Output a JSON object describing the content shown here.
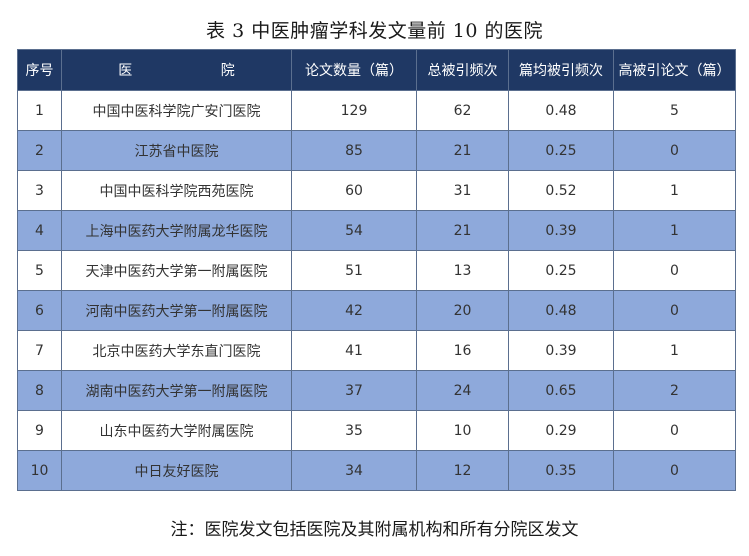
{
  "title": "表 3 中医肿瘤学科发文量前 10 的医院",
  "table": {
    "columns": [
      "序号",
      "医 院",
      "论文数量（篇）",
      "总被引频次",
      "篇均被引频次",
      "高被引论文（篇）"
    ],
    "rows": [
      [
        "1",
        "中国中医科学院广安门医院",
        "129",
        "62",
        "0.48",
        "5"
      ],
      [
        "2",
        "江苏省中医院",
        "85",
        "21",
        "0.25",
        "0"
      ],
      [
        "3",
        "中国中医科学院西苑医院",
        "60",
        "31",
        "0.52",
        "1"
      ],
      [
        "4",
        "上海中医药大学附属龙华医院",
        "54",
        "21",
        "0.39",
        "1"
      ],
      [
        "5",
        "天津中医药大学第一附属医院",
        "51",
        "13",
        "0.25",
        "0"
      ],
      [
        "6",
        "河南中医药大学第一附属医院",
        "42",
        "20",
        "0.48",
        "0"
      ],
      [
        "7",
        "北京中医药大学东直门医院",
        "41",
        "16",
        "0.39",
        "1"
      ],
      [
        "8",
        "湖南中医药大学第一附属医院",
        "37",
        "24",
        "0.65",
        "2"
      ],
      [
        "9",
        "山东中医药大学附属医院",
        "35",
        "10",
        "0.29",
        "0"
      ],
      [
        "10",
        "中日友好医院",
        "34",
        "12",
        "0.35",
        "0"
      ]
    ]
  },
  "note": "注：医院发文包括医院及其附属机构和所有分院区发文"
}
